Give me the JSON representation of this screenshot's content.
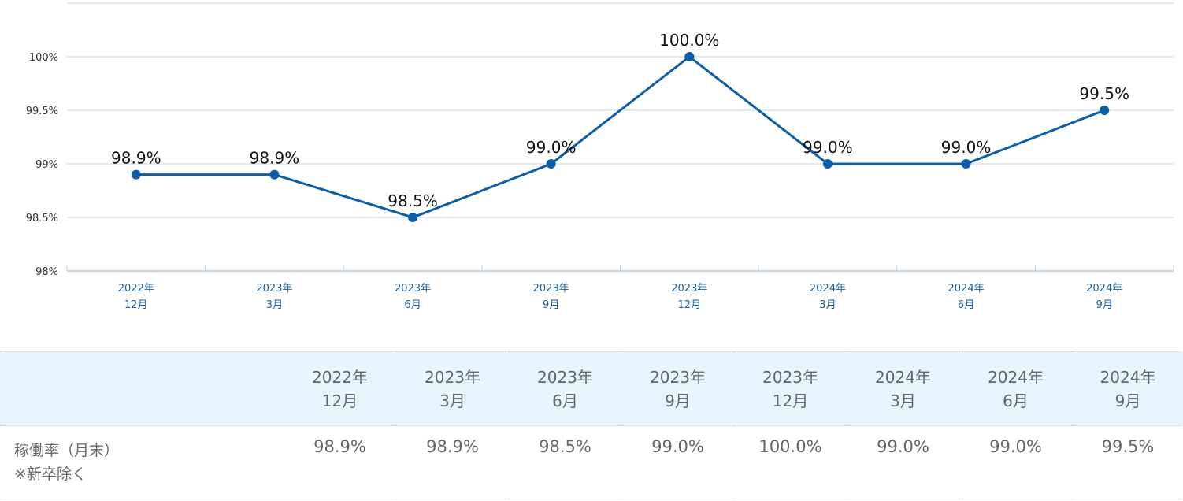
{
  "chart_data": {
    "type": "line",
    "categories": [
      [
        "2022年",
        "12月"
      ],
      [
        "2023年",
        "3月"
      ],
      [
        "2023年",
        "6月"
      ],
      [
        "2023年",
        "9月"
      ],
      [
        "2023年",
        "12月"
      ],
      [
        "2024年",
        "3月"
      ],
      [
        "2024年",
        "6月"
      ],
      [
        "2024年",
        "9月"
      ]
    ],
    "series": [
      {
        "values": [
          98.9,
          98.9,
          98.5,
          99.0,
          100.0,
          99.0,
          99.0,
          99.5
        ],
        "labels": [
          "98.9%",
          "98.9%",
          "98.5%",
          "99.0%",
          "100.0%",
          "99.0%",
          "99.0%",
          "99.5%"
        ],
        "color": "#0d5ea8"
      }
    ],
    "yticks": [
      98,
      98.5,
      99,
      99.5,
      100
    ],
    "yticklabels": [
      "98%",
      "98.5%",
      "99%",
      "99.5%",
      "100%"
    ],
    "ylim": [
      98,
      100.5
    ],
    "grid": true,
    "colors": {
      "line": "#0d5ea8",
      "grid": "#c5d3df",
      "xlabel": "#1a62a8",
      "ylabel": "#333333"
    }
  },
  "table": {
    "headers": [
      [
        "2022年",
        "12月"
      ],
      [
        "2023年",
        "3月"
      ],
      [
        "2023年",
        "6月"
      ],
      [
        "2023年",
        "9月"
      ],
      [
        "2023年",
        "12月"
      ],
      [
        "2024年",
        "3月"
      ],
      [
        "2024年",
        "6月"
      ],
      [
        "2024年",
        "9月"
      ]
    ],
    "row_label": "稼働率（月末）",
    "row_note": "※新卒除く",
    "values": [
      "98.9%",
      "98.9%",
      "98.5%",
      "99.0%",
      "100.0%",
      "99.0%",
      "99.0%",
      "99.5%"
    ],
    "header_bg": "#e8f4fc"
  }
}
